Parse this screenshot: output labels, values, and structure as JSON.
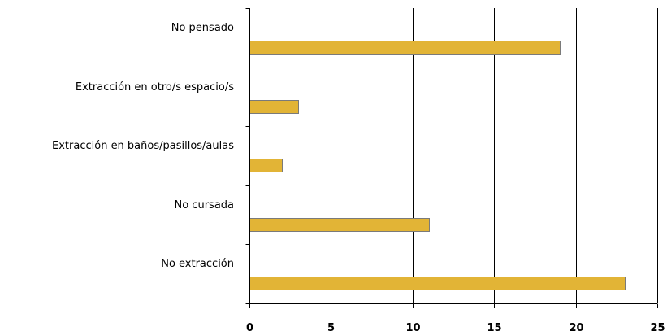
{
  "chart_data": {
    "type": "bar",
    "orientation": "horizontal",
    "categories": [
      "No pensado",
      "Extracción en otro/s espacio/s",
      "Extracción en baños/pasillos/aulas",
      "No cursada",
      "No extracción"
    ],
    "values": [
      19,
      3,
      2,
      11,
      23
    ],
    "xlim": [
      0,
      25
    ],
    "xticks": [
      "0",
      "5",
      "10",
      "15",
      "20",
      "25"
    ],
    "grid": true,
    "legend": "none",
    "title": "",
    "xlabel": "",
    "ylabel": "",
    "colors": {
      "bar_fill": "#E2B436",
      "bar_stroke": "#7A7A7A",
      "grid": "#000000"
    }
  }
}
